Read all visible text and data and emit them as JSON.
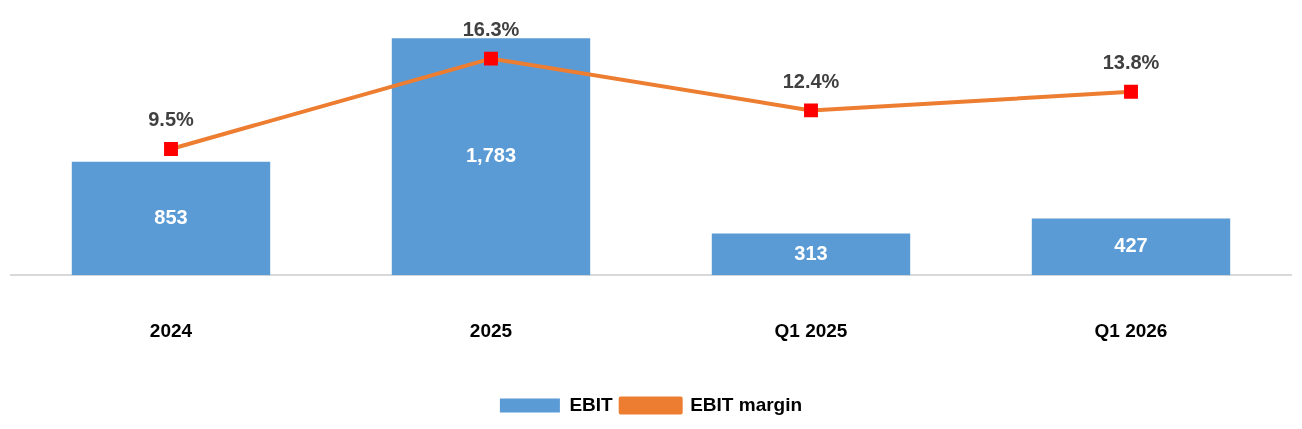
{
  "chart_data": {
    "type": "bar",
    "categories": [
      "2024",
      "2025",
      "Q1 2025",
      "Q1 2026"
    ],
    "series": [
      {
        "name": "EBIT",
        "color": "#5b9bd5",
        "values": [
          853,
          1783,
          313,
          427
        ],
        "value_labels": [
          "853",
          "1,783",
          "313",
          "427"
        ]
      },
      {
        "name": "EBIT margin",
        "type": "line",
        "axis": "y2",
        "color": "#ed7d31",
        "colors": [
          "#ff0000",
          "#ff0000",
          "#ff0000",
          "#ff0000"
        ],
        "marker": "square",
        "values": [
          9.5,
          16.3,
          12.4,
          13.8
        ],
        "value_labels": [
          "9.5%",
          "16.3%",
          "12.4%",
          "13.8%"
        ]
      }
    ],
    "data_labels": true,
    "legend": "bottom",
    "tick_labels": "x"
  }
}
